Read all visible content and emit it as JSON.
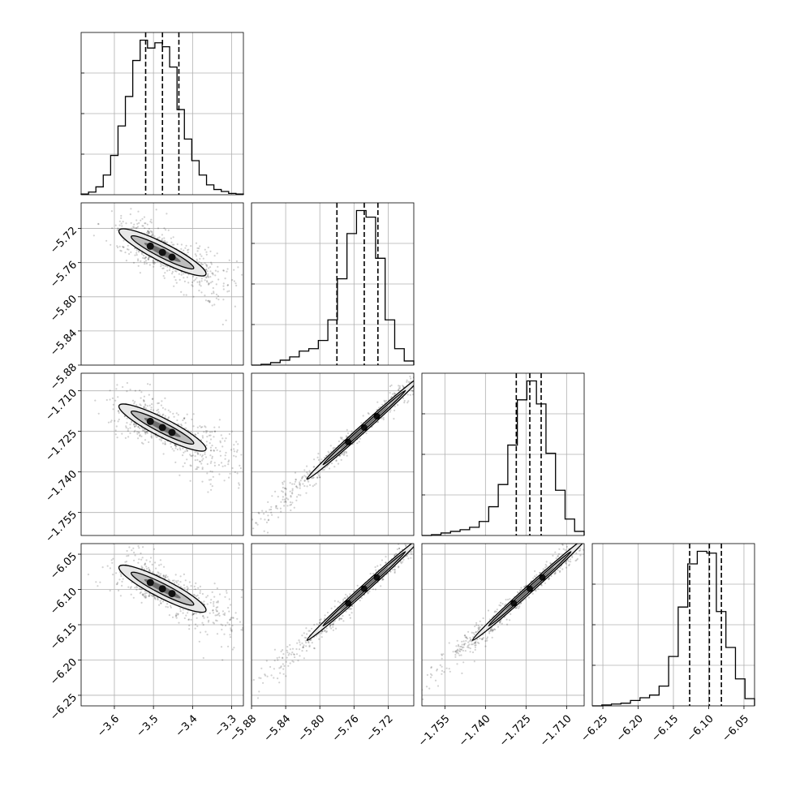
{
  "chart_data": {
    "type": "corner",
    "parameters": [
      {
        "index": 0,
        "median": -3.477,
        "q16": -3.52,
        "q84": -3.435,
        "range": [
          -3.685,
          -3.27
        ],
        "ticks": [
          -3.6,
          -3.5,
          -3.4,
          -3.3
        ],
        "tick_labels": [
          "−3.6",
          "−3.5",
          "−3.4",
          "−3.3"
        ]
      },
      {
        "index": 1,
        "median": -5.748,
        "q16": -5.78,
        "q84": -5.732,
        "range": [
          -5.88,
          -5.69
        ],
        "ticks": [
          -5.88,
          -5.84,
          -5.8,
          -5.76,
          -5.72
        ],
        "tick_labels": [
          "−5.88",
          "−5.84",
          "−5.80",
          "−5.76",
          "−5.72"
        ]
      },
      {
        "index": 2,
        "median": -1.7236,
        "q16": -1.7286,
        "q84": -1.7194,
        "range": [
          -1.7635,
          -1.7035
        ],
        "ticks": [
          -1.755,
          -1.74,
          -1.725,
          -1.71
        ],
        "tick_labels": [
          "−1.755",
          "−1.740",
          "−1.725",
          "−1.710"
        ]
      },
      {
        "index": 3,
        "median": -6.099,
        "q16": -6.127,
        "q84": -6.082,
        "range": [
          -6.265,
          -6.035
        ],
        "ticks": [
          -6.25,
          -6.2,
          -6.15,
          -6.1,
          -6.05
        ],
        "tick_labels": [
          "−6.25",
          "−6.20",
          "−6.15",
          "−6.10",
          "−6.05"
        ]
      }
    ],
    "histograms": [
      {
        "param": 0,
        "bins_range": [
          -3.685,
          -3.27
        ],
        "counts": [
          1,
          4,
          12,
          30,
          60,
          105,
          150,
          205,
          236,
          224,
          232,
          226,
          195,
          130,
          85,
          52,
          30,
          15,
          8,
          5,
          2,
          1
        ]
      },
      {
        "param": 1,
        "bins_range": [
          -5.88,
          -5.69
        ],
        "counts": [
          0,
          1,
          3,
          6,
          10,
          17,
          20,
          30,
          55,
          105,
          160,
          188,
          180,
          130,
          55,
          20,
          5
        ]
      },
      {
        "param": 2,
        "bins_range": [
          -1.7635,
          -1.7035
        ],
        "counts": [
          0,
          1,
          3,
          5,
          7,
          10,
          17,
          35,
          62,
          110,
          165,
          188,
          160,
          100,
          55,
          20,
          5
        ]
      },
      {
        "param": 3,
        "bins_range": [
          -6.265,
          -6.035
        ],
        "counts": [
          0,
          1,
          2,
          3,
          6,
          9,
          12,
          22,
          55,
          110,
          158,
          172,
          170,
          105,
          65,
          30,
          8
        ]
      }
    ],
    "pairs": [
      {
        "x_param": 0,
        "y_param": 1,
        "correlation": "negative"
      },
      {
        "x_param": 0,
        "y_param": 2,
        "correlation": "negative"
      },
      {
        "x_param": 0,
        "y_param": 3,
        "correlation": "negative"
      },
      {
        "x_param": 1,
        "y_param": 2,
        "correlation": "positive"
      },
      {
        "x_param": 1,
        "y_param": 3,
        "correlation": "positive"
      },
      {
        "x_param": 2,
        "y_param": 3,
        "correlation": "positive"
      }
    ],
    "grid": true,
    "title": "",
    "xlabel": "",
    "ylabel": ""
  }
}
